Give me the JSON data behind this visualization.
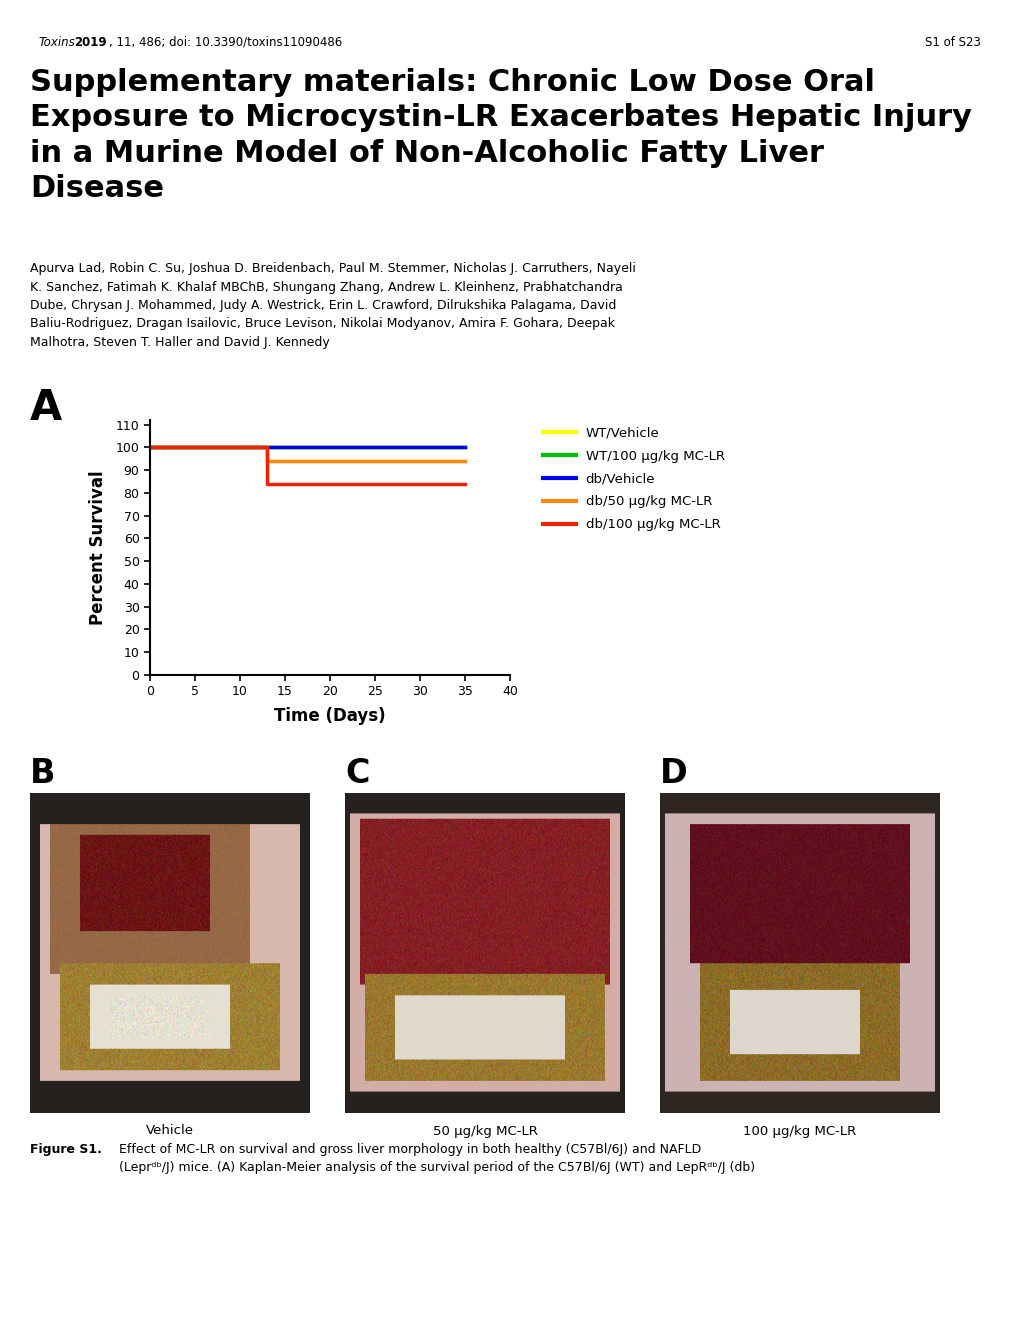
{
  "journal_line_italic": "Toxins",
  "journal_line_bold": " 2019",
  "journal_line_rest": ", 11, 486; doi: 10.3390/toxins11090486",
  "page_line": "S1 of S23",
  "title": "Supplementary materials: Chronic Low Dose Oral\nExposure to Microcystin-LR Exacerbates Hepatic Injury\nin a Murine Model of Non-Alcoholic Fatty Liver\nDisease",
  "authors": "Apurva Lad, Robin C. Su, Joshua D. Breidenbach, Paul M. Stemmer, Nicholas J. Carruthers, Nayeli\nK. Sanchez, Fatimah K. Khalaf MBChB, Shungang Zhang, Andrew L. Kleinhenz, Prabhatchandra\nDube, Chrysan J. Mohammed, Judy A. Westrick, Erin L. Crawford, Dilrukshika Palagama, David\nBaliu-Rodriguez, Dragan Isailovic, Bruce Levison, Nikolai Modyanov, Amira F. Gohara, Deepak\nMalhotra, Steven T. Haller and David J. Kennedy",
  "panel_a_label": "A",
  "xlabel": "Time (Days)",
  "ylabel": "Percent Survival",
  "xlim": [
    0,
    40
  ],
  "ylim": [
    0,
    110
  ],
  "yticks": [
    0,
    10,
    20,
    30,
    40,
    50,
    60,
    70,
    80,
    90,
    100,
    110
  ],
  "xticks": [
    0,
    5,
    10,
    15,
    20,
    25,
    30,
    35,
    40
  ],
  "lines": [
    {
      "label": "WT/Vehicle",
      "color": "#FFFF00",
      "x": [
        0,
        35
      ],
      "y": [
        100,
        100
      ]
    },
    {
      "label": "WT/100 μg/kg MC-LR",
      "color": "#00BB00",
      "x": [
        0,
        35
      ],
      "y": [
        100,
        100
      ]
    },
    {
      "label": "db/Vehicle",
      "color": "#0000EE",
      "x": [
        0,
        35
      ],
      "y": [
        100,
        100
      ]
    },
    {
      "label": "db/50 μg/kg MC-LR",
      "color": "#FF8800",
      "x": [
        0,
        13,
        13,
        35
      ],
      "y": [
        100,
        100,
        94,
        94
      ]
    },
    {
      "label": "db/100 μg/kg MC-LR",
      "color": "#EE2200",
      "x": [
        0,
        13,
        13,
        35
      ],
      "y": [
        100,
        100,
        84,
        84
      ]
    }
  ],
  "panel_b_label": "B",
  "panel_c_label": "C",
  "panel_d_label": "D",
  "panel_b_caption": "Vehicle",
  "panel_c_caption": "50 μg/kg MC-LR",
  "panel_d_caption": "100 μg/kg MC-LR",
  "fig_caption_bold": "Figure S1.",
  "fig_caption_rest": " Effect of MC-LR on survival and gross liver morphology in both healthy (C57Bl/6J) and NAFLD\n(Leprᵈᵇ/J) mice. (A) Kaplan-Meier analysis of the survival period of the C57Bl/6J (WT) and LepRᵈᵇ/J (db)",
  "bg_color": "#FFFFFF"
}
